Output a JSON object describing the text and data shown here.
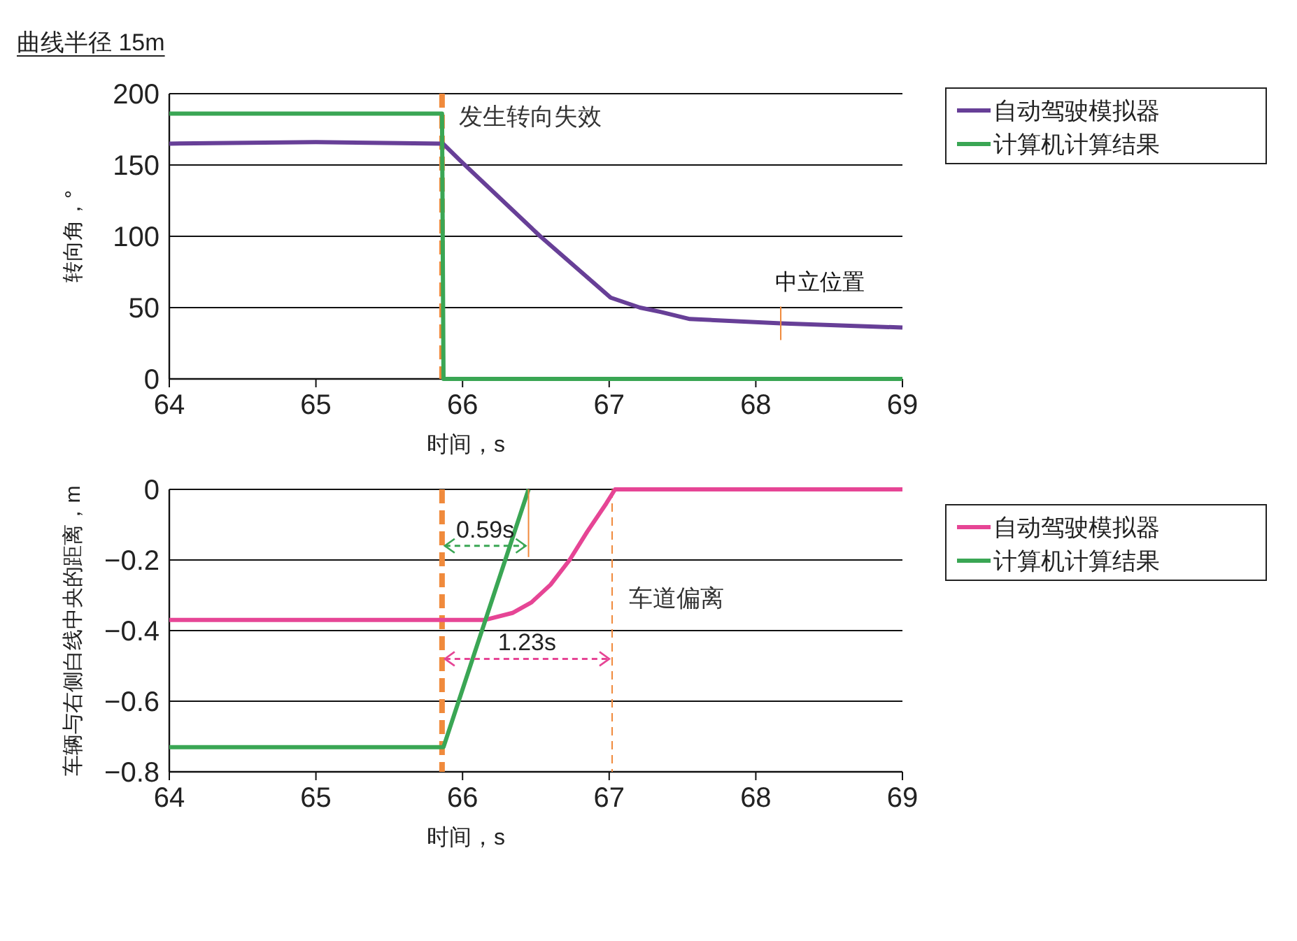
{
  "chart_data": [
    {
      "type": "line",
      "title": "曲线半径  15m",
      "ylabel": "转向角，°",
      "xlabel": "时间，s",
      "xlim": [
        64,
        69
      ],
      "xticks": [
        64,
        65,
        66,
        67,
        68,
        69
      ],
      "ylim": [
        0,
        200
      ],
      "yticks": [
        0,
        50,
        100,
        150,
        200
      ],
      "grid": "y",
      "legend": "right",
      "series": [
        {
          "name": "自动驾驶模拟器",
          "color": "#673f97",
          "x": [
            64,
            65,
            65.866,
            65.985,
            66.53,
            67.01,
            67.21,
            67.35,
            67.55,
            68.17,
            69
          ],
          "values": [
            165,
            166,
            165,
            153,
            100,
            57,
            50,
            47,
            42,
            39,
            36
          ]
        },
        {
          "name": "计算机计算结果",
          "color": "#3aa654",
          "x": [
            64,
            65.86,
            65.87,
            69
          ],
          "values": [
            186,
            186,
            0,
            0
          ]
        }
      ],
      "ref_lines": [
        {
          "axis": "x",
          "value": 65.86,
          "label": "发生转向失效",
          "color": "#f08a3c",
          "line_style": "dashed"
        }
      ],
      "annotations": [
        {
          "text": "中立位置",
          "x": 68.17,
          "y": 39
        }
      ]
    },
    {
      "type": "line",
      "ylabel": "车辆与右侧白线中央的距离，m",
      "xlabel": "时间，s",
      "xlim": [
        64,
        69
      ],
      "xticks": [
        64,
        65,
        66,
        67,
        68,
        69
      ],
      "ylim": [
        -0.8,
        0
      ],
      "yticks": [
        {
          "value": -0.8,
          "label": "−0.8"
        },
        {
          "value": -0.6,
          "label": "−0.6"
        },
        {
          "value": -0.4,
          "label": "−0.4"
        },
        {
          "value": -0.2,
          "label": "−0.2"
        },
        0
      ],
      "grid": "y",
      "legend": "right",
      "series": [
        {
          "name": "自动驾驶模拟器",
          "color": "#e64595",
          "x": [
            64,
            65,
            65.9,
            66.15,
            66.34,
            66.47,
            66.6,
            66.73,
            66.85,
            66.98,
            67.04,
            69
          ],
          "values": [
            -0.37,
            -0.37,
            -0.37,
            -0.37,
            -0.35,
            -0.32,
            -0.27,
            -0.2,
            -0.12,
            -0.04,
            0,
            0
          ]
        },
        {
          "name": "计算机计算结果",
          "color": "#3aa654",
          "x": [
            64,
            65.87,
            66.45
          ],
          "values": [
            -0.73,
            -0.73,
            0
          ]
        }
      ],
      "ref_lines": [
        {
          "axis": "x",
          "value": 65.86,
          "color": "#f08a3c",
          "line_style": "dashed"
        },
        {
          "axis": "x",
          "value": 67.02,
          "label": "车道偏离",
          "color": "#f08a3c",
          "line_style": "dashed"
        }
      ],
      "annotations": [
        "0.59s",
        "1.23s"
      ]
    }
  ]
}
